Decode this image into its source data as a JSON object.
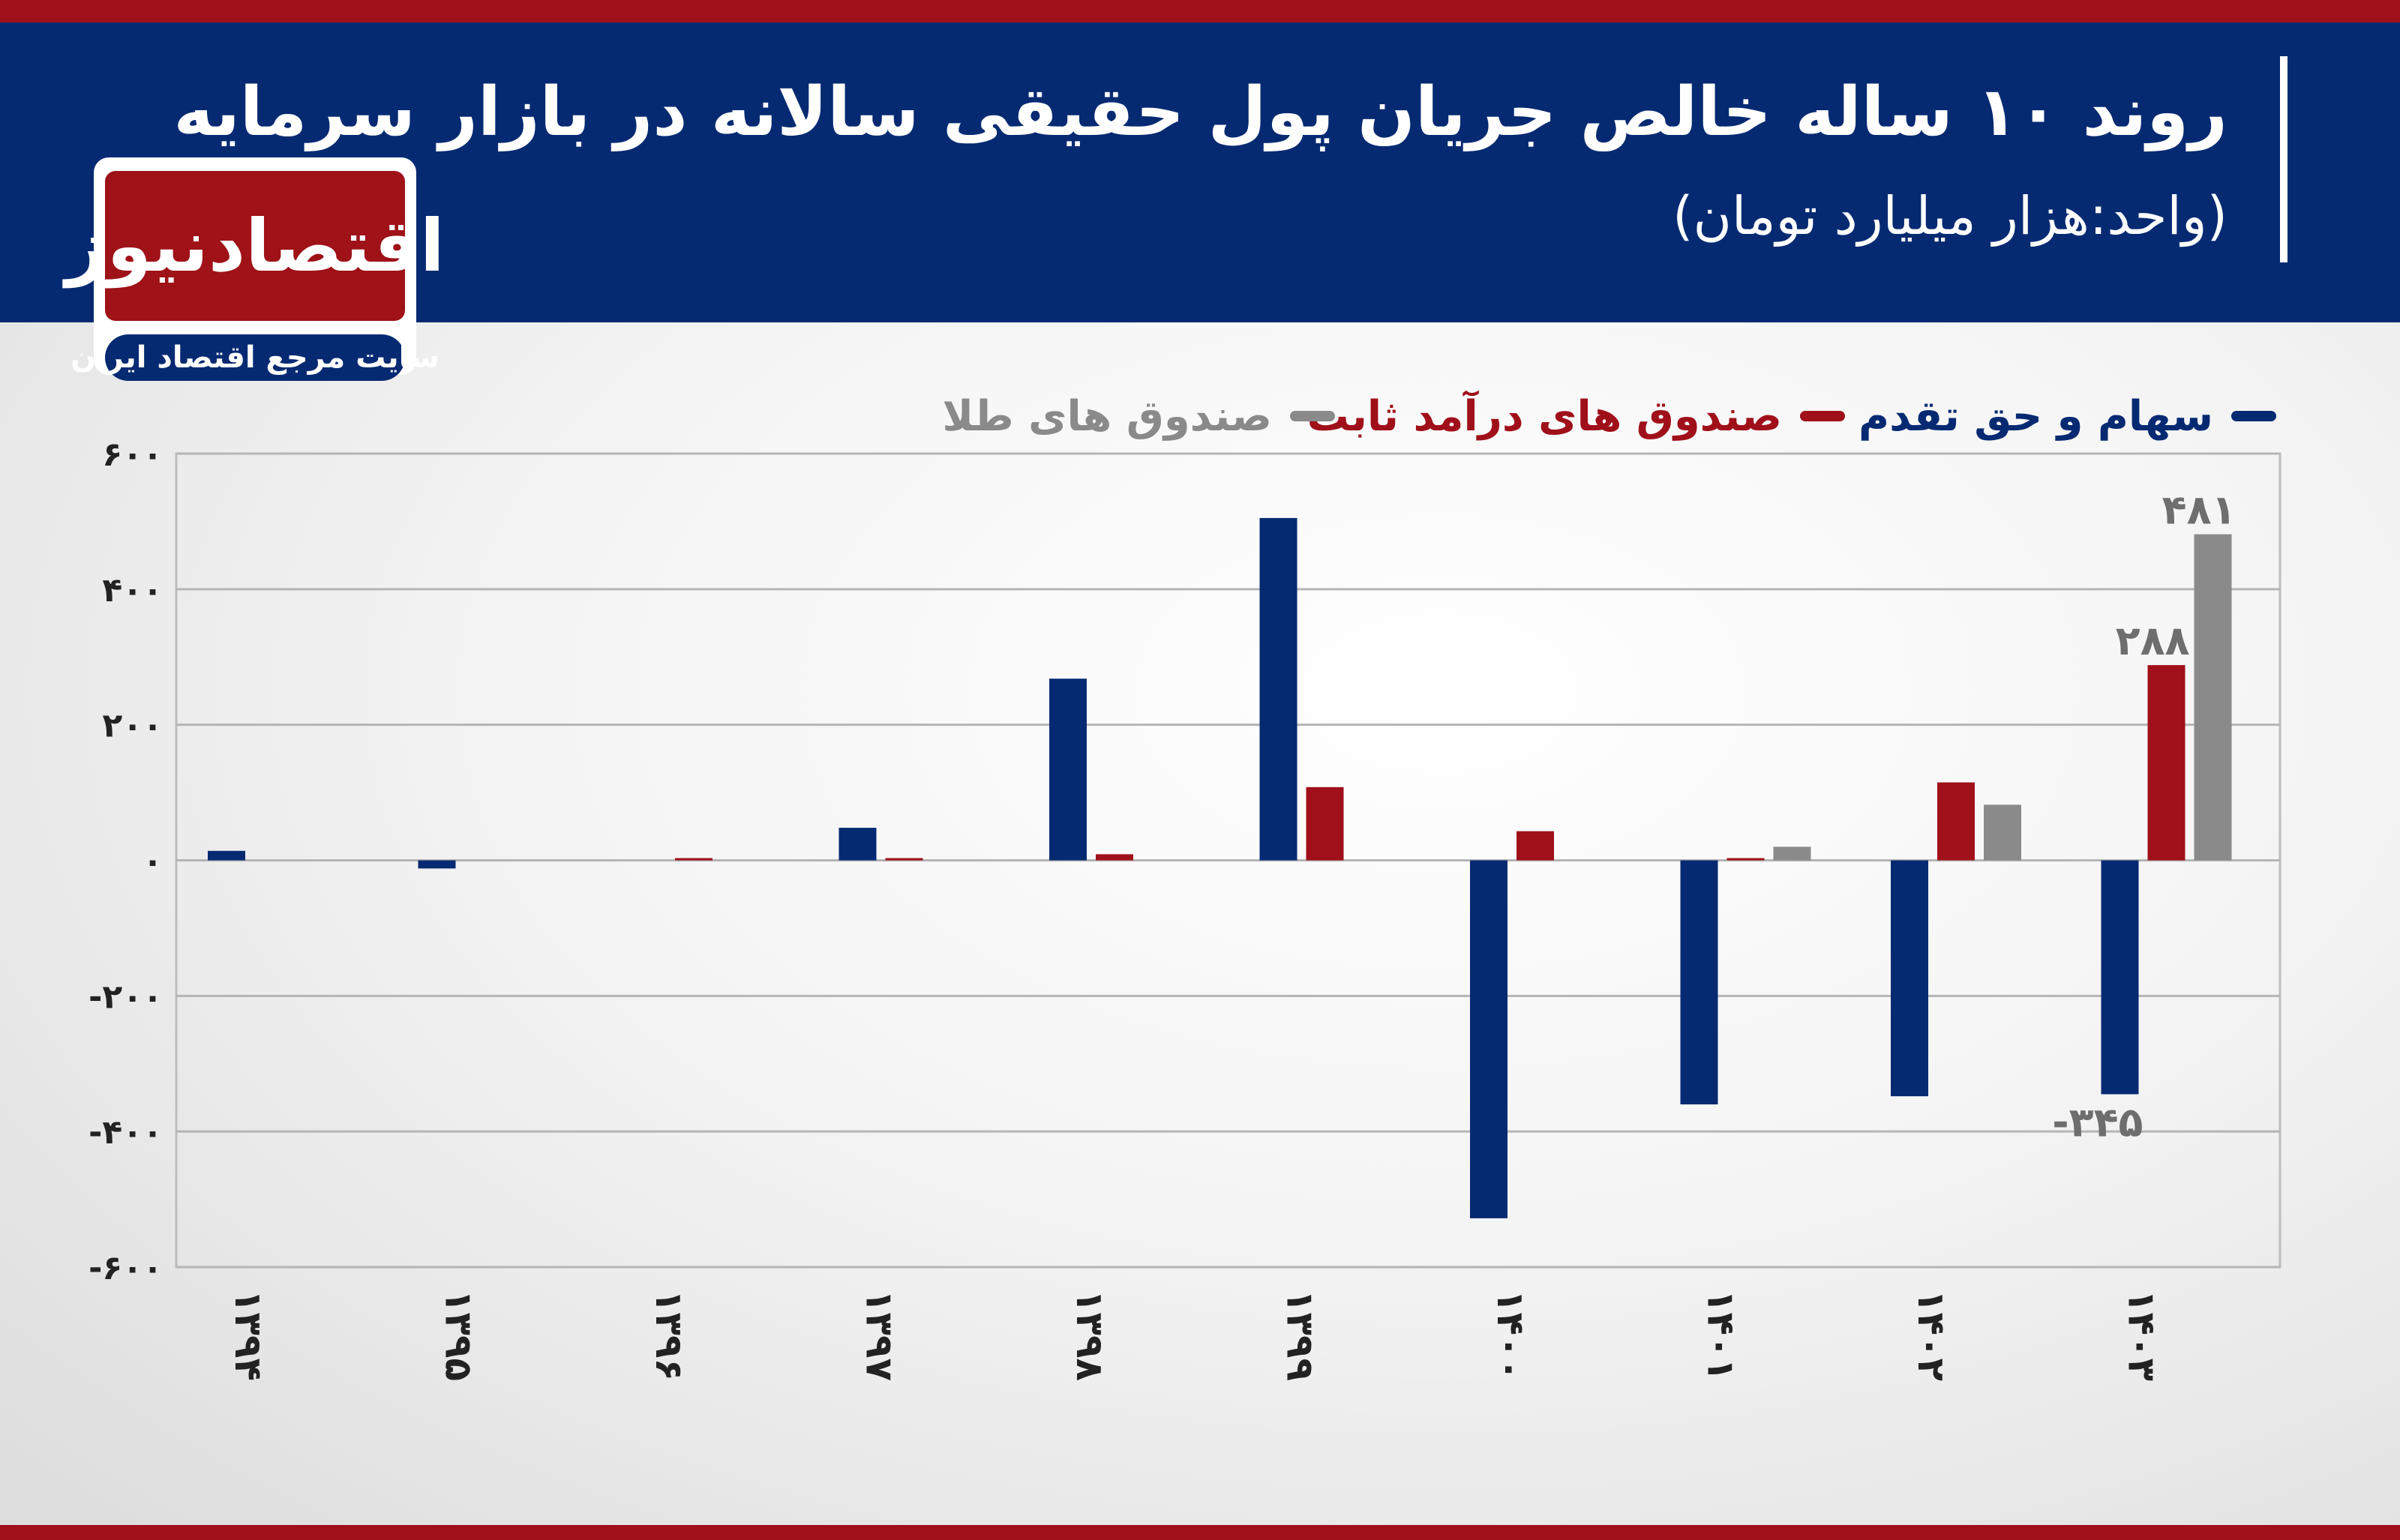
{
  "header": {
    "title": "روند ۱۰ ساله خالص جریان پول حقیقی سالانه در بازار سرمایه",
    "subtitle": "(واحد:هزار میلیارد تومان)"
  },
  "logo": {
    "name": "اقتصادنیوز",
    "tagline": "سایت مرجع اقتصاد ایران"
  },
  "colors": {
    "header_bg": "#062a72",
    "accent_red": "#a0101a",
    "series_blue": "#062a72",
    "series_red": "#a0101a",
    "series_gray": "#8a8a8a"
  },
  "chart_data": {
    "type": "bar",
    "categories": [
      "۱۳۹۴",
      "۱۳۹۵",
      "۱۳۹۶",
      "۱۳۹۷",
      "۱۳۹۸",
      "۱۳۹۹",
      "۱۴۰۰",
      "۱۴۰۱",
      "۱۴۰۲",
      "۱۴۰۳"
    ],
    "series": [
      {
        "name": "سهام و حق تقدم",
        "color": "#062a72",
        "values": [
          14,
          -12,
          0,
          48,
          268,
          505,
          -528,
          -360,
          -348,
          -345
        ]
      },
      {
        "name": "صندوق های درآمد ثابت",
        "color": "#a0101a",
        "values": [
          0,
          0,
          2,
          1,
          9,
          108,
          43,
          3,
          115,
          288
        ]
      },
      {
        "name": "صندوق های طلا",
        "color": "#8a8a8a",
        "values": [
          0,
          0,
          0,
          0,
          0,
          0,
          0,
          20,
          82,
          481
        ]
      }
    ],
    "yticks": [
      "۶۰۰",
      "۴۰۰",
      "۲۰۰",
      "۰",
      "-۲۰۰",
      "-۴۰۰",
      "-۶۰۰"
    ],
    "ytick_values": [
      600,
      400,
      200,
      0,
      -200,
      -400,
      -600
    ],
    "ylim": [
      -600,
      600
    ],
    "grid": true,
    "legend_position": "top",
    "data_labels": [
      {
        "series": 2,
        "index": 9,
        "text": "۴۸۱"
      },
      {
        "series": 1,
        "index": 9,
        "text": "۲۸۸"
      },
      {
        "series": 0,
        "index": 9,
        "text": "-۳۴۵"
      }
    ]
  }
}
